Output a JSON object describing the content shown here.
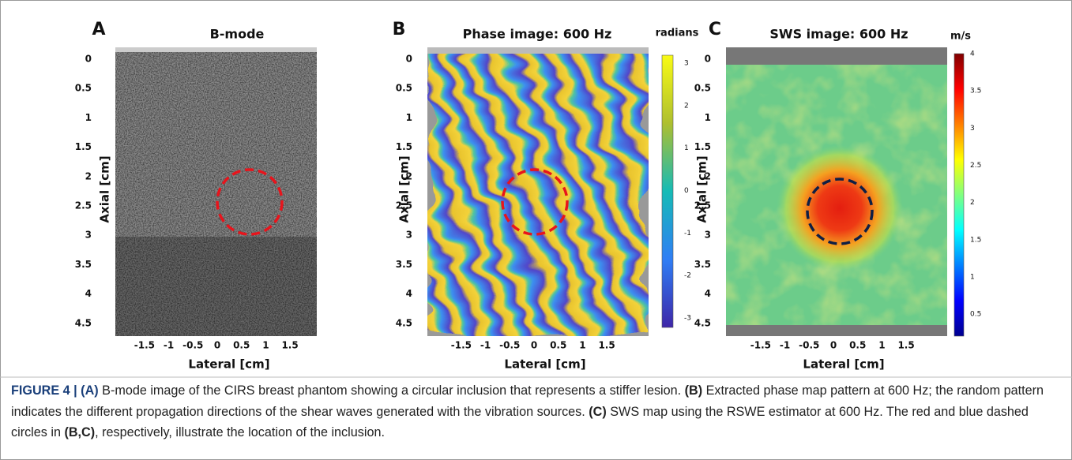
{
  "panels": [
    {
      "letter": "A",
      "title": "B-mode",
      "y_label": "Axial [cm]",
      "x_label": "Lateral [cm]",
      "yticks": [
        0,
        0.5,
        1,
        1.5,
        2,
        2.5,
        3,
        3.5,
        4,
        4.5
      ],
      "xticks": [
        -1.5,
        -1,
        -0.5,
        0,
        0.5,
        1,
        1.5
      ]
    },
    {
      "letter": "B",
      "title": "Phase image: 600 Hz",
      "y_label": "Axial [cm]",
      "x_label": "Lateral [cm]",
      "yticks": [
        0,
        0.5,
        1,
        1.5,
        2,
        2.5,
        3,
        3.5,
        4,
        4.5
      ],
      "xticks": [
        -1.5,
        -1,
        -0.5,
        0,
        0.5,
        1,
        1.5
      ],
      "colorbar": {
        "label": "radians",
        "ticks": [
          3,
          2,
          1,
          0,
          -1,
          -2,
          -3
        ]
      }
    },
    {
      "letter": "C",
      "title": "SWS image: 600 Hz",
      "y_label": "Axial [cm]",
      "x_label": "Lateral [cm]",
      "yticks": [
        0,
        0.5,
        1,
        1.5,
        2,
        2.5,
        3,
        3.5,
        4,
        4.5
      ],
      "xticks": [
        -1.5,
        -1,
        -0.5,
        0,
        0.5,
        1,
        1.5
      ],
      "colorbar": {
        "label": "m/s",
        "ticks": [
          4,
          3.5,
          3,
          2.5,
          2,
          1.5,
          1,
          0.5
        ]
      }
    }
  ],
  "caption": [
    {
      "text": "FIGURE 4 | (A)",
      "bold": true,
      "accent": true
    },
    {
      "text": " B-mode image of the CIRS breast phantom showing a circular inclusion that represents a stiffer lesion. ",
      "bold": false
    },
    {
      "text": "(B)",
      "bold": true
    },
    {
      "text": " Extracted phase map pattern at 600 Hz; the random pattern indicates the different propagation directions of the shear waves generated with the vibration sources. ",
      "bold": false
    },
    {
      "text": "(C)",
      "bold": true
    },
    {
      "text": " SWS map using the RSWE estimator at 600 Hz. The red and blue dashed circles in ",
      "bold": false
    },
    {
      "text": "(B,C)",
      "bold": true
    },
    {
      "text": ", respectively, illustrate the location of the inclusion.",
      "bold": false
    }
  ]
}
